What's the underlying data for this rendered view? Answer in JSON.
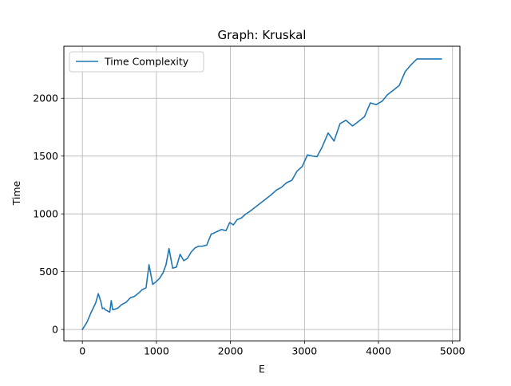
{
  "chart_data": {
    "type": "line",
    "title": "Graph: Kruskal",
    "xlabel": "E",
    "ylabel": "Time",
    "xlim": [
      -250,
      5100
    ],
    "ylim": [
      -100,
      2450
    ],
    "xticks": [
      0,
      1000,
      2000,
      3000,
      4000,
      5000
    ],
    "yticks": [
      0,
      500,
      1000,
      1500,
      2000
    ],
    "grid": true,
    "legend_position": "upper-left",
    "series": [
      {
        "name": "Time Complexity",
        "color": "#1f77b4",
        "x": [
          0,
          60,
          120,
          180,
          215,
          250,
          270,
          290,
          310,
          340,
          370,
          390,
          410,
          440,
          480,
          530,
          590,
          650,
          700,
          760,
          810,
          860,
          900,
          950,
          990,
          1040,
          1090,
          1130,
          1170,
          1220,
          1270,
          1320,
          1370,
          1420,
          1470,
          1520,
          1570,
          1620,
          1680,
          1740,
          1780,
          1830,
          1880,
          1940,
          1990,
          2040,
          2090,
          2150,
          2200,
          2270,
          2340,
          2410,
          2480,
          2550,
          2620,
          2690,
          2760,
          2830,
          2900,
          2970,
          3040,
          3110,
          3170,
          3240,
          3320,
          3400,
          3480,
          3560,
          3650,
          3730,
          3810,
          3890,
          3970,
          4050,
          4120,
          4200,
          4280,
          4360,
          4440,
          4520,
          4600,
          4660,
          4730,
          4800,
          4850
        ],
        "values": [
          0,
          60,
          150,
          230,
          310,
          240,
          180,
          185,
          170,
          160,
          150,
          250,
          170,
          175,
          185,
          215,
          235,
          275,
          285,
          315,
          345,
          360,
          560,
          390,
          410,
          440,
          490,
          560,
          700,
          530,
          540,
          650,
          595,
          615,
          670,
          705,
          720,
          720,
          730,
          825,
          835,
          850,
          865,
          855,
          925,
          905,
          950,
          965,
          995,
          1025,
          1060,
          1095,
          1130,
          1165,
          1205,
          1230,
          1270,
          1290,
          1370,
          1410,
          1510,
          1500,
          1495,
          1580,
          1700,
          1630,
          1780,
          1810,
          1760,
          1800,
          1840,
          1960,
          1945,
          1975,
          2030,
          2070,
          2110,
          2230,
          2290,
          2340,
          2340,
          2340,
          2340,
          2340,
          2340
        ]
      }
    ]
  }
}
